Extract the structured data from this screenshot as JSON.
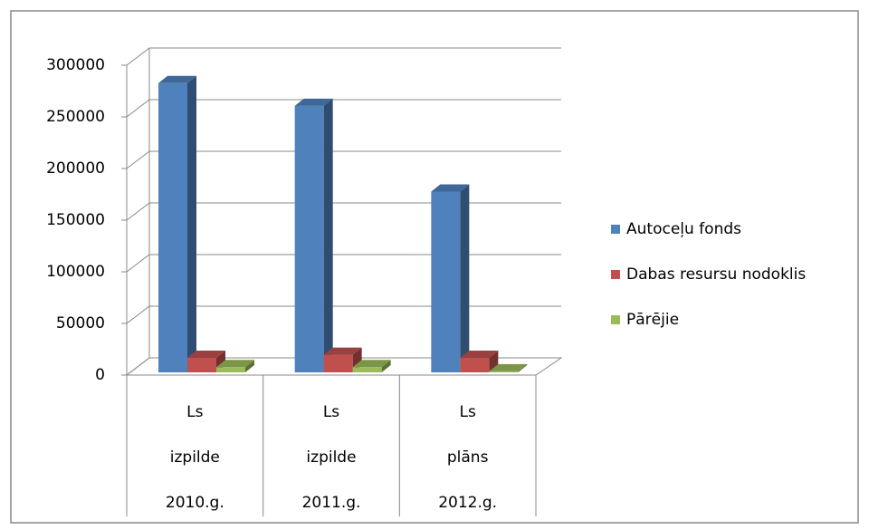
{
  "chart_data": {
    "type": "bar3d",
    "categories": [
      [
        "Ls",
        "izpilde",
        "2010.g."
      ],
      [
        "Ls",
        "izpilde",
        "2011.g."
      ],
      [
        "Ls",
        "plāns",
        "2012.g."
      ]
    ],
    "series": [
      {
        "name": "Autoceļu fonds",
        "color": "#4f81bd",
        "values": [
          280000,
          258000,
          175000
        ]
      },
      {
        "name": "Dabas resursu nodoklis",
        "color": "#c0504d",
        "values": [
          14000,
          17000,
          14000
        ]
      },
      {
        "name": "Pārējie",
        "color": "#9bbb59",
        "values": [
          5000,
          5000,
          1000
        ]
      }
    ],
    "ylim": [
      0,
      300000
    ],
    "yticks": [
      0,
      50000,
      100000,
      150000,
      200000,
      250000,
      300000
    ],
    "grid": true,
    "legend": "right"
  }
}
